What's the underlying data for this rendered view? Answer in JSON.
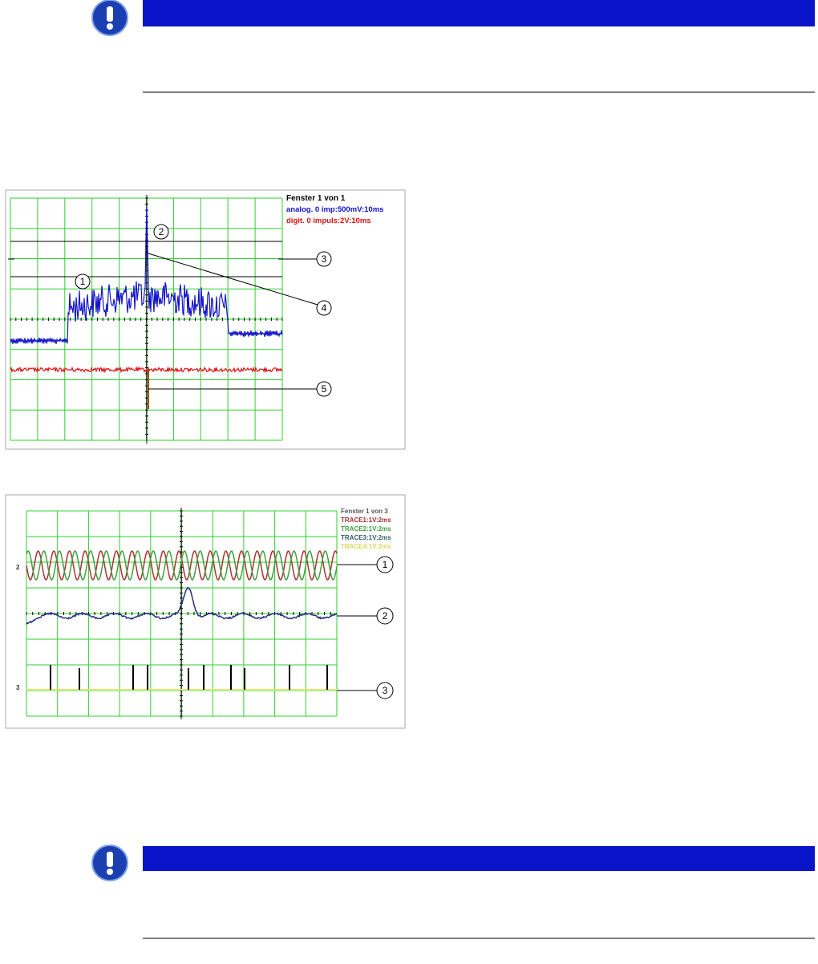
{
  "figure_1": {
    "legend": {
      "title": "Fenster 1 von 1",
      "lines": [
        "analog. 0 imp:500mV:10ms",
        "digit. 0 impuls:2V:10ms"
      ]
    },
    "callouts": [
      "1",
      "2",
      "3",
      "4",
      "5"
    ]
  },
  "figure_2": {
    "legend": {
      "title": "Fenster 1 von 3",
      "lines": [
        "TRACE1:1V:2ms",
        "TRACE2:1V:2ms",
        "TRACE3:1V:2ms",
        "TRACE4:1V:2ms"
      ]
    },
    "channel_labels": [
      "2",
      "3"
    ],
    "callouts": [
      "1",
      "2",
      "3"
    ]
  }
}
